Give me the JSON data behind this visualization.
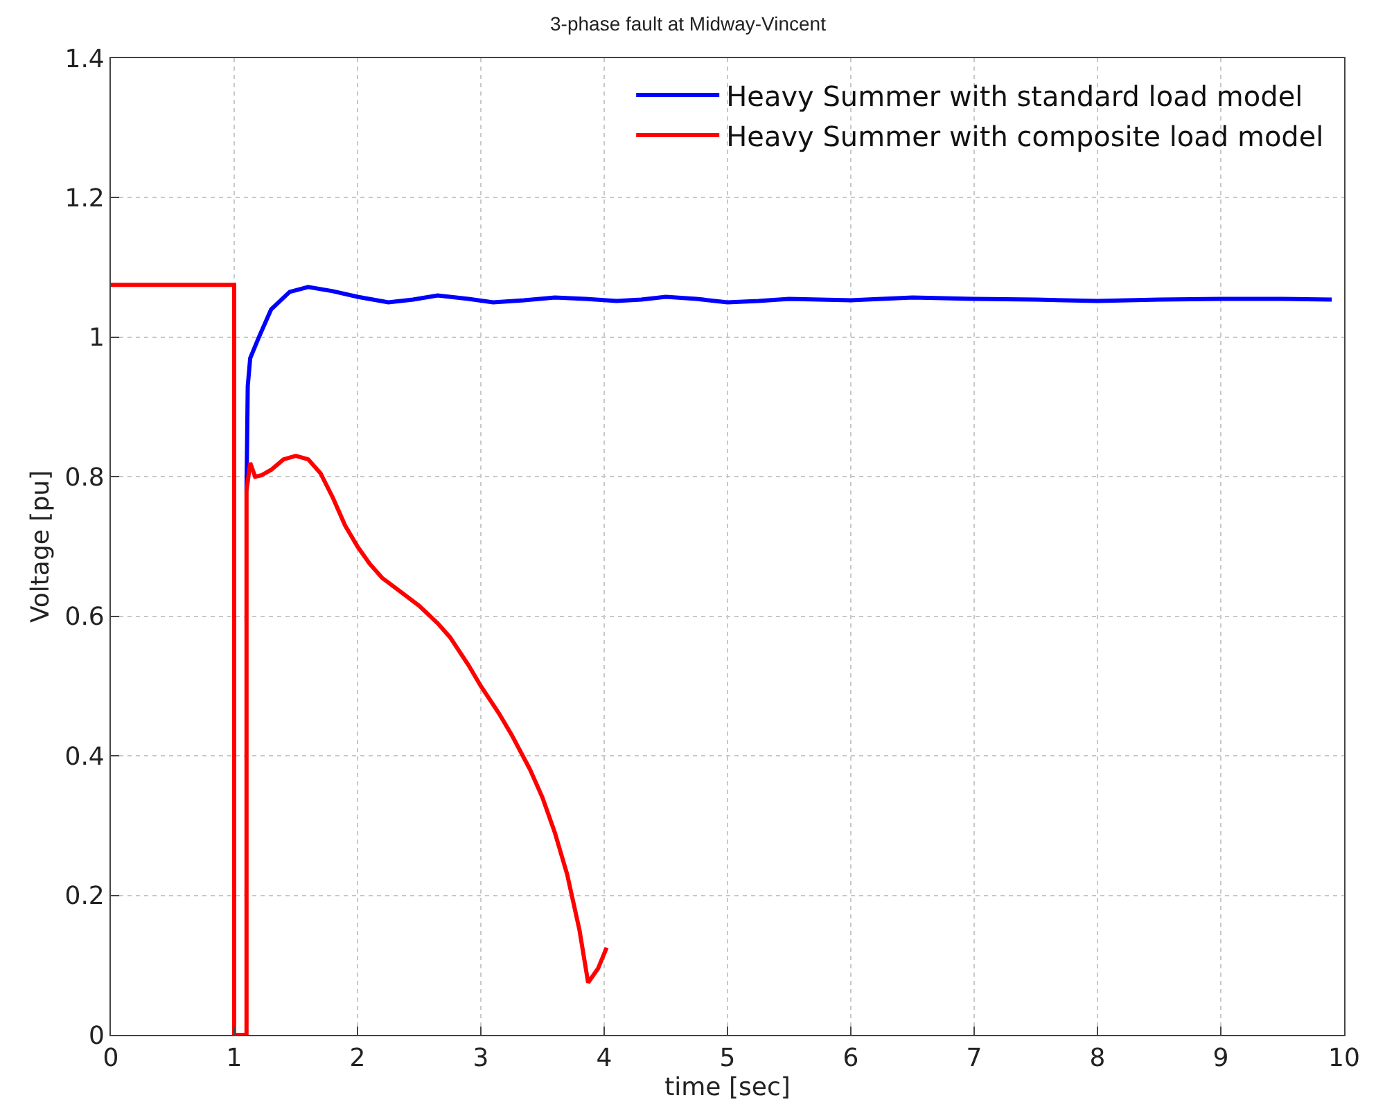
{
  "chart_data": {
    "type": "line",
    "title": "3-phase fault at Midway-Vincent",
    "xlabel": "time [sec]",
    "ylabel": "Voltage [pu]",
    "xlim": [
      0,
      10
    ],
    "ylim": [
      0,
      1.4
    ],
    "xticks": [
      0,
      1,
      2,
      3,
      4,
      5,
      6,
      7,
      8,
      9,
      10
    ],
    "yticks": [
      0,
      0.2,
      0.4,
      0.6,
      0.8,
      1,
      1.2,
      1.4
    ],
    "grid": true,
    "legend": "top right",
    "marker": "none",
    "line_style": "solid",
    "series": [
      {
        "name": "Heavy Summer with standard load model",
        "color": "#0000ff",
        "x": [
          1.1,
          1.11,
          1.13,
          1.2,
          1.3,
          1.45,
          1.6,
          1.8,
          2.0,
          2.25,
          2.45,
          2.65,
          2.9,
          3.1,
          3.35,
          3.6,
          3.85,
          4.1,
          4.3,
          4.5,
          4.75,
          5.0,
          5.25,
          5.5,
          5.75,
          6.0,
          6.25,
          6.5,
          7.0,
          7.5,
          8.0,
          8.5,
          9.0,
          9.5,
          9.9
        ],
        "values": [
          0.78,
          0.93,
          0.97,
          1.0,
          1.04,
          1.065,
          1.072,
          1.066,
          1.058,
          1.05,
          1.054,
          1.06,
          1.055,
          1.05,
          1.053,
          1.057,
          1.055,
          1.052,
          1.054,
          1.058,
          1.055,
          1.05,
          1.052,
          1.055,
          1.054,
          1.053,
          1.055,
          1.057,
          1.055,
          1.054,
          1.052,
          1.054,
          1.055,
          1.055,
          1.054
        ]
      },
      {
        "name": "Heavy Summer with composite load model",
        "color": "#ff0000",
        "x": [
          0,
          1.0,
          1.0,
          1.1,
          1.1,
          1.13,
          1.17,
          1.22,
          1.3,
          1.4,
          1.5,
          1.6,
          1.7,
          1.8,
          1.9,
          2.0,
          2.1,
          2.2,
          2.35,
          2.5,
          2.65,
          2.75,
          2.9,
          3.0,
          3.15,
          3.25,
          3.4,
          3.5,
          3.6,
          3.7,
          3.8,
          3.87,
          3.95,
          4.02
        ],
        "values": [
          1.075,
          1.075,
          0,
          0,
          0.78,
          0.82,
          0.8,
          0.802,
          0.81,
          0.825,
          0.83,
          0.825,
          0.805,
          0.77,
          0.73,
          0.7,
          0.675,
          0.655,
          0.635,
          0.615,
          0.59,
          0.57,
          0.53,
          0.5,
          0.46,
          0.43,
          0.38,
          0.34,
          0.29,
          0.23,
          0.15,
          0.075,
          0.095,
          0.125
        ]
      }
    ]
  }
}
